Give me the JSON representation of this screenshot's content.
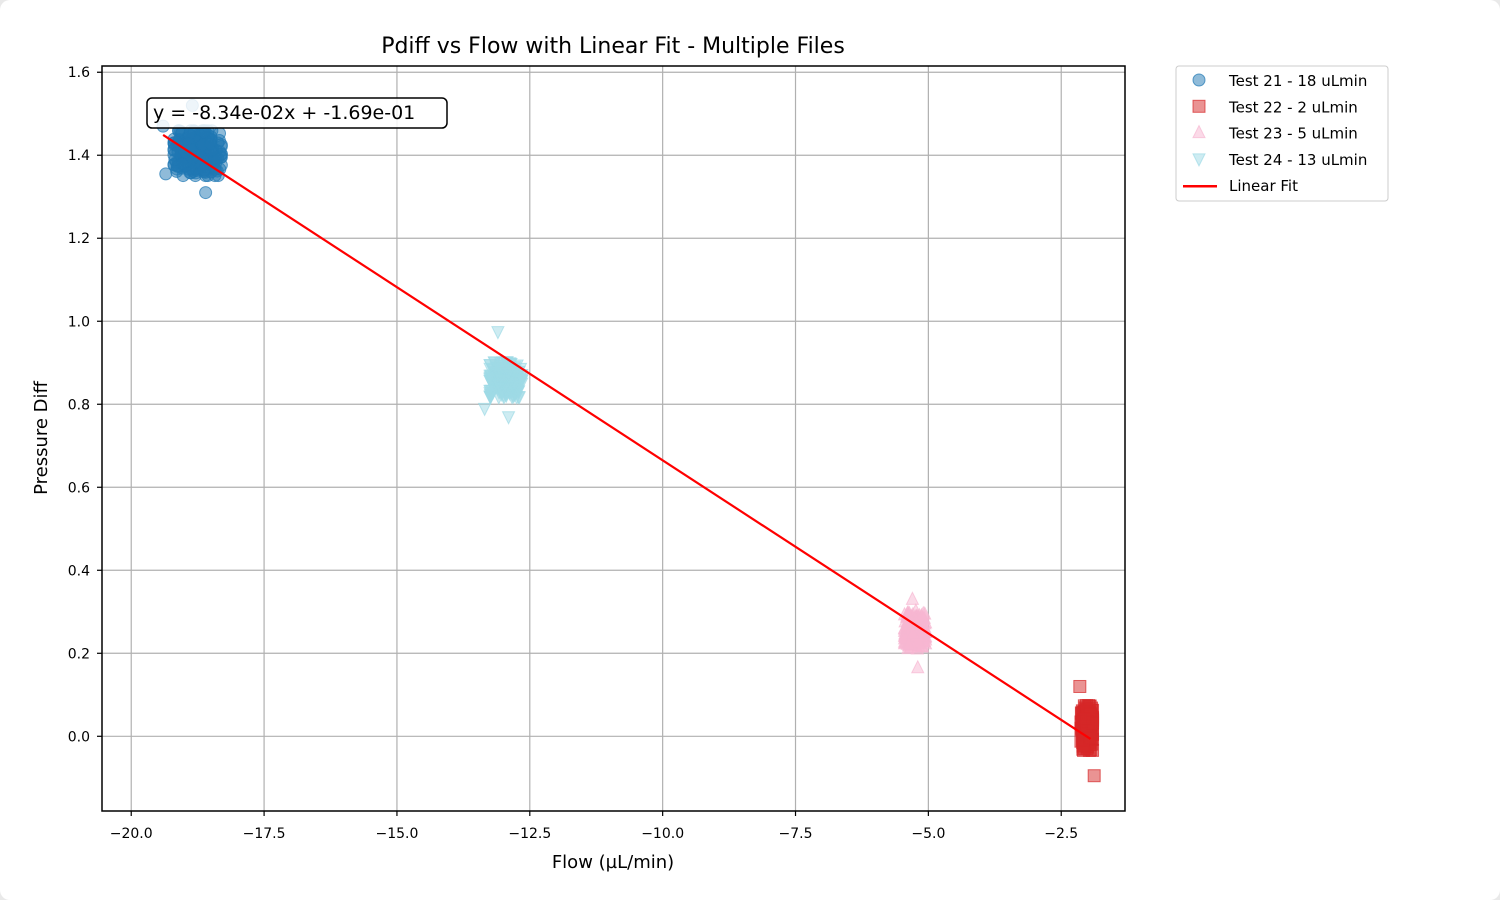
{
  "chart_data": {
    "type": "scatter",
    "title": "Pdiff vs Flow with Linear Fit - Multiple Files",
    "xlabel": "Flow (µL/min)",
    "ylabel": "Pressure Diff",
    "xlim": [
      -20.55,
      -1.3
    ],
    "ylim": [
      -0.18,
      1.615
    ],
    "xticks": [
      -20.0,
      -17.5,
      -15.0,
      -12.5,
      -10.0,
      -7.5,
      -5.0,
      -2.5
    ],
    "xtick_labels": [
      "−20.0",
      "−17.5",
      "−15.0",
      "−12.5",
      "−10.0",
      "−7.5",
      "−5.0",
      "−2.5"
    ],
    "yticks": [
      0.0,
      0.2,
      0.4,
      0.6,
      0.8,
      1.0,
      1.2,
      1.4,
      1.6
    ],
    "ytick_labels": [
      "0.0",
      "0.2",
      "0.4",
      "0.6",
      "0.8",
      "1.0",
      "1.2",
      "1.4",
      "1.6"
    ],
    "grid": true,
    "legend_position": "outside-top-right",
    "series": [
      {
        "name": "Test 21 - 18 uLmin",
        "marker": "circle",
        "color": "#1f77b4",
        "x_center": -18.75,
        "x_spread": 0.45,
        "y_center": 1.405,
        "y_spread": 0.045,
        "n": 260,
        "outliers": [
          [
            -18.6,
            1.31
          ],
          [
            -19.35,
            1.355
          ],
          [
            -19.4,
            1.47
          ],
          [
            -18.85,
            1.52
          ]
        ]
      },
      {
        "name": "Test 22 - 2 uLmin",
        "marker": "square",
        "color": "#d62728",
        "x_center": -2.02,
        "x_spread": 0.11,
        "y_center": 0.02,
        "y_spread": 0.045,
        "n": 200,
        "outliers": [
          [
            -1.88,
            -0.095
          ],
          [
            -2.15,
            0.12
          ]
        ]
      },
      {
        "name": "Test 23 - 5 uLmin",
        "marker": "triangle-up",
        "color": "#f7b6d2",
        "x_center": -5.25,
        "x_spread": 0.2,
        "y_center": 0.255,
        "y_spread": 0.04,
        "n": 220,
        "outliers": [
          [
            -5.3,
            0.33
          ],
          [
            -5.2,
            0.165
          ]
        ]
      },
      {
        "name": "Test 24 - 13 uLmin",
        "marker": "triangle-down",
        "color": "#9edae5",
        "x_center": -12.95,
        "x_spread": 0.3,
        "y_center": 0.86,
        "y_spread": 0.035,
        "n": 240,
        "outliers": [
          [
            -13.1,
            0.975
          ],
          [
            -12.9,
            0.77
          ],
          [
            -13.35,
            0.79
          ]
        ]
      }
    ],
    "fit": {
      "name": "Linear Fit",
      "color": "#ff0000",
      "slope": -0.0834,
      "intercept": -0.169,
      "x_range": [
        -19.4,
        -1.95
      ],
      "label": "y = -8.34e-02x + -1.69e-01"
    }
  }
}
